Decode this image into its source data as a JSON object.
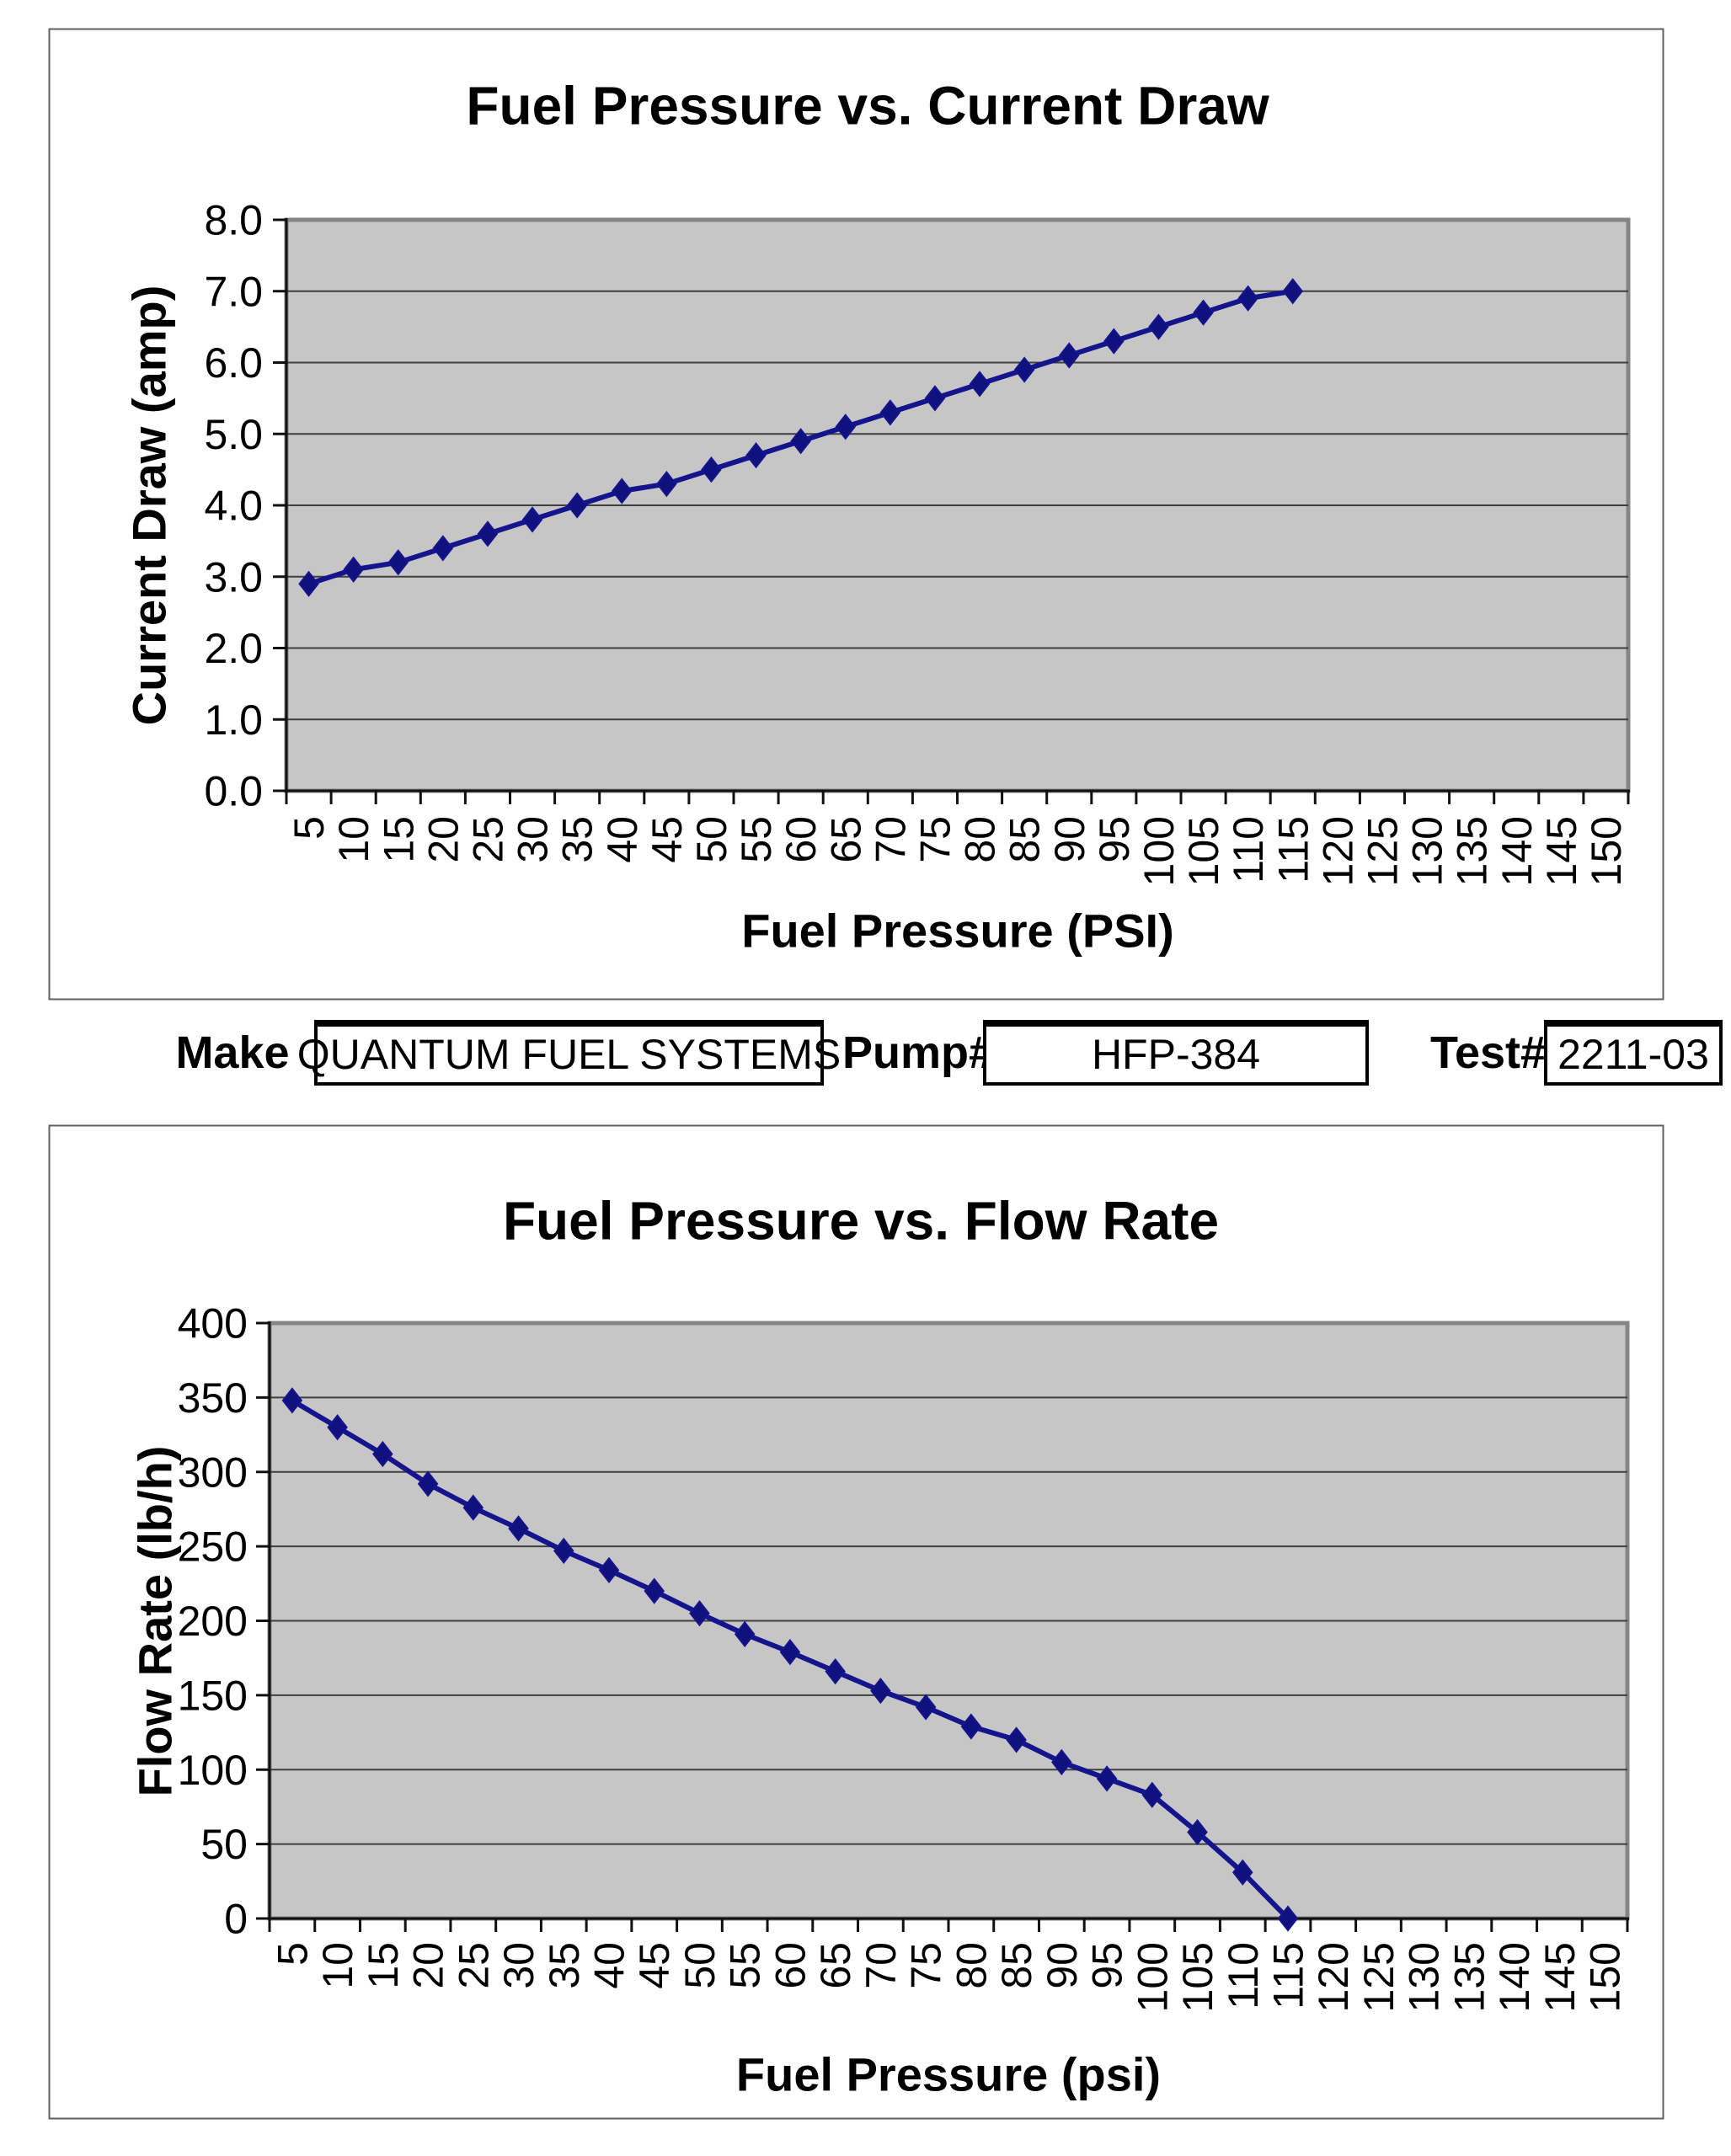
{
  "meta_row": {
    "make_label": "Make",
    "make_value": "QUANTUM FUEL SYSTEMS",
    "pump_label": "Pump#",
    "pump_value": "HFP-384",
    "test_label": "Test#",
    "test_value": "2211-03"
  },
  "colors": {
    "series_line": "#14148c",
    "marker_fill": "#10107e",
    "plot_background": "#c6c6c6",
    "gridline": "#3f3f3f",
    "axis_line": "#111111",
    "plot_border": "#858585",
    "frame_border": "#5f5f5f",
    "page_background": "#ffffff"
  },
  "chart_data": [
    {
      "type": "line",
      "title": "Fuel Pressure vs. Current Draw",
      "xlabel": "Fuel Pressure (PSI)",
      "ylabel": "Current Draw (amp)",
      "categories": [
        5,
        10,
        15,
        20,
        25,
        30,
        35,
        40,
        45,
        50,
        55,
        60,
        65,
        70,
        75,
        80,
        85,
        90,
        95,
        100,
        105,
        110,
        115,
        120,
        125,
        130,
        135,
        140,
        145,
        150
      ],
      "values": [
        2.9,
        3.1,
        3.2,
        3.4,
        3.6,
        3.8,
        4.0,
        4.2,
        4.3,
        4.5,
        4.7,
        4.9,
        5.1,
        5.3,
        5.5,
        5.7,
        5.9,
        6.1,
        6.3,
        6.5,
        6.7,
        6.9,
        7.0
      ],
      "ylim": [
        0,
        8
      ],
      "yticks": [
        0.0,
        1.0,
        2.0,
        3.0,
        4.0,
        5.0,
        6.0,
        7.0,
        8.0
      ],
      "ytick_decimals": 1,
      "grid": "horizontal",
      "legend": "none",
      "marker": "diamond"
    },
    {
      "type": "line",
      "title": "Fuel Pressure vs. Flow Rate",
      "xlabel": "Fuel Pressure (psi)",
      "ylabel": "Flow Rate (lb/h)",
      "categories": [
        5,
        10,
        15,
        20,
        25,
        30,
        35,
        40,
        45,
        50,
        55,
        60,
        65,
        70,
        75,
        80,
        85,
        90,
        95,
        100,
        105,
        110,
        115,
        120,
        125,
        130,
        135,
        140,
        145,
        150
      ],
      "values": [
        348,
        330,
        312,
        292,
        276,
        262,
        247,
        234,
        220,
        205,
        191,
        179,
        166,
        153,
        142,
        129,
        120,
        105,
        94,
        83,
        58,
        31,
        0
      ],
      "ylim": [
        0,
        400
      ],
      "yticks": [
        0,
        50,
        100,
        150,
        200,
        250,
        300,
        350,
        400
      ],
      "ytick_decimals": 0,
      "grid": "horizontal",
      "legend": "none",
      "marker": "diamond"
    }
  ]
}
